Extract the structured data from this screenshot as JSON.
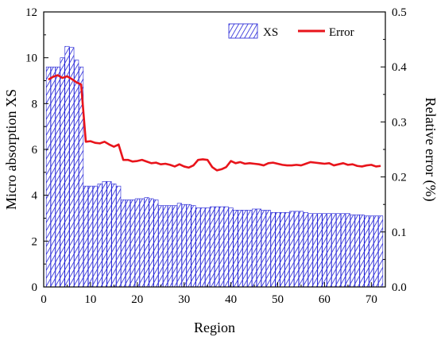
{
  "chart_data": {
    "type": "bar",
    "xlabel": "Region",
    "ylabel": "Micro absorption XS",
    "y2label": "Relative error (%)",
    "xlim": [
      0,
      73
    ],
    "ylim": [
      0,
      12
    ],
    "y2lim": [
      0.0,
      0.5
    ],
    "xticks": [
      0,
      10,
      20,
      30,
      40,
      50,
      60,
      70
    ],
    "yticks": [
      0,
      2,
      4,
      6,
      8,
      10,
      12
    ],
    "y2ticks": [
      0.0,
      0.1,
      0.2,
      0.3,
      0.4,
      0.5
    ],
    "y2tick_labels": [
      "0.0",
      "0.1",
      "0.2",
      "0.3",
      "0.4",
      "0.5"
    ],
    "grid": false,
    "legend_position": "top-right",
    "x": [
      1,
      2,
      3,
      4,
      5,
      6,
      7,
      8,
      9,
      10,
      11,
      12,
      13,
      14,
      15,
      16,
      17,
      18,
      19,
      20,
      21,
      22,
      23,
      24,
      25,
      26,
      27,
      28,
      29,
      30,
      31,
      32,
      33,
      34,
      35,
      36,
      37,
      38,
      39,
      40,
      41,
      42,
      43,
      44,
      45,
      46,
      47,
      48,
      49,
      50,
      51,
      52,
      53,
      54,
      55,
      56,
      57,
      58,
      59,
      60,
      61,
      62,
      63,
      64,
      65,
      66,
      67,
      68,
      69,
      70,
      71,
      72
    ],
    "series": [
      {
        "name": "XS",
        "kind": "bar",
        "axis": "left",
        "color": "#1f1fd6",
        "values": [
          9.6,
          9.6,
          9.6,
          10.0,
          10.5,
          10.45,
          9.9,
          9.6,
          4.4,
          4.4,
          4.4,
          4.5,
          4.6,
          4.6,
          4.5,
          4.4,
          3.8,
          3.8,
          3.8,
          3.85,
          3.85,
          3.9,
          3.85,
          3.8,
          3.55,
          3.55,
          3.55,
          3.55,
          3.65,
          3.6,
          3.6,
          3.55,
          3.45,
          3.45,
          3.45,
          3.5,
          3.5,
          3.5,
          3.5,
          3.45,
          3.35,
          3.35,
          3.35,
          3.35,
          3.4,
          3.4,
          3.35,
          3.35,
          3.25,
          3.25,
          3.25,
          3.25,
          3.3,
          3.3,
          3.3,
          3.25,
          3.2,
          3.2,
          3.2,
          3.2,
          3.2,
          3.2,
          3.2,
          3.2,
          3.2,
          3.15,
          3.15,
          3.15,
          3.1,
          3.1,
          3.1,
          3.1
        ]
      },
      {
        "name": "Error",
        "kind": "line",
        "axis": "right",
        "color": "#e8141b",
        "values": [
          0.377,
          0.382,
          0.385,
          0.38,
          0.383,
          0.378,
          0.372,
          0.368,
          0.264,
          0.265,
          0.262,
          0.261,
          0.264,
          0.259,
          0.255,
          0.259,
          0.231,
          0.231,
          0.228,
          0.229,
          0.231,
          0.228,
          0.225,
          0.226,
          0.223,
          0.224,
          0.222,
          0.219,
          0.223,
          0.219,
          0.217,
          0.221,
          0.231,
          0.232,
          0.231,
          0.218,
          0.212,
          0.214,
          0.218,
          0.229,
          0.225,
          0.227,
          0.224,
          0.225,
          0.224,
          0.223,
          0.221,
          0.225,
          0.226,
          0.224,
          0.222,
          0.221,
          0.221,
          0.222,
          0.221,
          0.224,
          0.227,
          0.226,
          0.225,
          0.224,
          0.225,
          0.221,
          0.223,
          0.225,
          0.222,
          0.223,
          0.22,
          0.219,
          0.221,
          0.222,
          0.219,
          0.22
        ]
      }
    ]
  }
}
